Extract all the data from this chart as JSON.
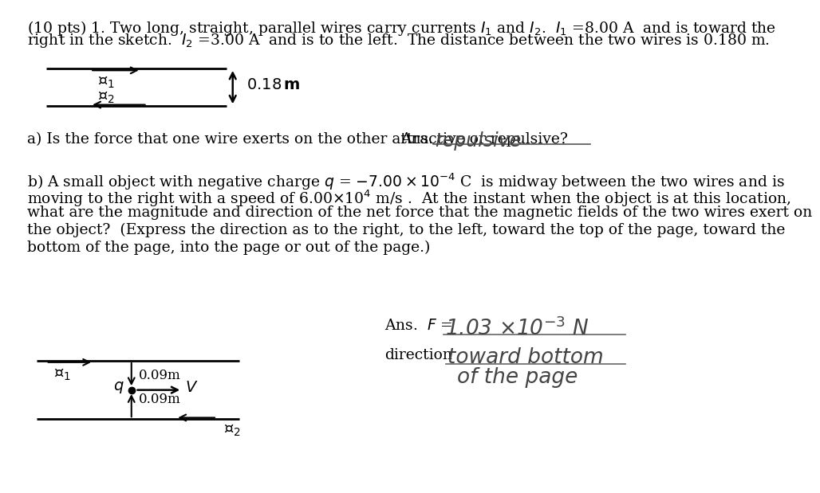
{
  "bg_color": "#ffffff",
  "fig_width": 10.24,
  "fig_height": 7.79,
  "fs_main": 13.5,
  "fs_hand": 16,
  "header_line1": "(10 pts) 1. Two long, straight, parallel wires carry currents $I_1$ and $I_2$.  $I_1$ =8.00 A  and is toward the",
  "header_line2": "right in the sketch.  $I_2$ =3.00 A  and is to the left.  The distance between the two wires is 0.180 m.",
  "part_a_q": "a) Is the force that one wire exerts on the other attractive or repulsive?",
  "part_a_ans_label": "Ans.",
  "part_a_ans": "repulsive",
  "part_b_lines": [
    "b) A small object with negative charge $q$ = $-7.00\\times10^{-4}$ C  is midway between the two wires and is",
    "moving to the right with a speed of 6.00$\\times$10$^4$ m/s .  At the instant when the object is at this location,",
    "what are the magnitude and direction of the net force that the magnetic fields of the two wires exert on",
    "the object?  (Express the direction as to the right, to the left, toward the top of the page, toward the",
    "bottom of the page, into the page or out of the page.)"
  ],
  "ans_f_label": "Ans.  $F$ = ",
  "ans_f_val": "1.03 X10$^{-3}$ N",
  "ans_dir_label": "direction",
  "ans_dir_val": "toward bottom",
  "ans_dir_val2": "of the page",
  "d1_xl": 0.06,
  "d1_xr": 0.345,
  "d1_yt": 0.872,
  "d1_yb": 0.793,
  "d1_xv": 0.355,
  "d1_dist_label": "0.18 m",
  "d2_xl": 0.045,
  "d2_xr": 0.365,
  "d2_yw1": 0.26,
  "d2_yw2": 0.138,
  "d2_xv": 0.195,
  "d2_dist_label": "0.09m"
}
